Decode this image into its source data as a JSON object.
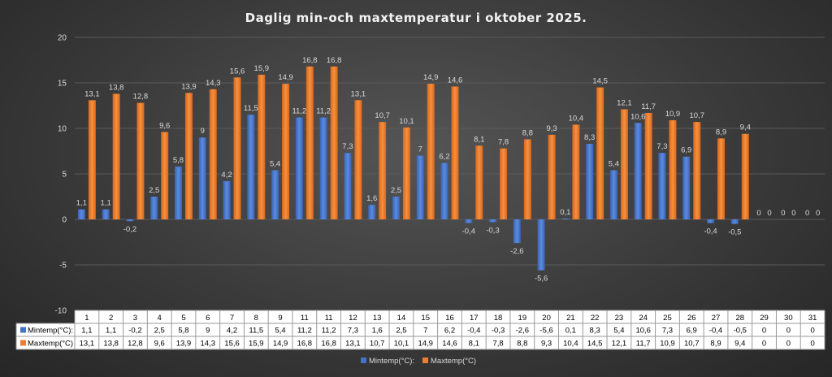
{
  "chart_data": {
    "type": "bar",
    "title": "Daglig min-och maxtemperatur i oktober 2025.",
    "ylim": [
      -10,
      20
    ],
    "yticks": [
      -10,
      -5,
      0,
      5,
      10,
      15,
      20
    ],
    "grid": true,
    "legend_position": "bottom",
    "categories": [
      "1",
      "2",
      "3",
      "4",
      "5",
      "6",
      "7",
      "8",
      "9",
      "11",
      "11",
      "12",
      "13",
      "14",
      "15",
      "16",
      "17",
      "18",
      "19",
      "20",
      "21",
      "22",
      "23",
      "24",
      "25",
      "26",
      "27",
      "28",
      "29",
      "30",
      "31"
    ],
    "series": [
      {
        "name": "Mintemp(°C):",
        "color": "#4472C4",
        "values": [
          1.1,
          1.1,
          -0.2,
          2.5,
          5.8,
          9,
          4.2,
          11.5,
          5.4,
          11.2,
          11.2,
          7.3,
          1.6,
          2.5,
          7,
          6.2,
          -0.4,
          -0.3,
          -2.6,
          -5.6,
          0.1,
          8.3,
          5.4,
          10.6,
          7.3,
          6.9,
          -0.4,
          -0.5,
          0,
          0,
          0
        ],
        "labels": [
          "1,1",
          "1,1",
          "-0,2",
          "2,5",
          "5,8",
          "9",
          "4,2",
          "11,5",
          "5,4",
          "11,2",
          "11,2",
          "7,3",
          "1,6",
          "2,5",
          "7",
          "6,2",
          "-0,4",
          "-0,3",
          "-2,6",
          "-5,6",
          "0,1",
          "8,3",
          "5,4",
          "10,6",
          "7,3",
          "6,9",
          "-0,4",
          "-0,5",
          "0",
          "0",
          "0"
        ]
      },
      {
        "name": "Maxtemp(°C)",
        "color": "#ED7D31",
        "values": [
          13.1,
          13.8,
          12.8,
          9.6,
          13.9,
          14.3,
          15.6,
          15.9,
          14.9,
          16.8,
          16.8,
          13.1,
          10.7,
          10.1,
          14.9,
          14.6,
          8.1,
          7.8,
          8.8,
          9.3,
          10.4,
          14.5,
          12.1,
          11.7,
          10.9,
          10.7,
          8.9,
          9.4,
          0,
          0,
          0
        ],
        "labels": [
          "13,1",
          "13,8",
          "12,8",
          "9,6",
          "13,9",
          "14,3",
          "15,6",
          "15,9",
          "14,9",
          "16,8",
          "16,8",
          "13,1",
          "10,7",
          "10,1",
          "14,9",
          "14,6",
          "8,1",
          "7,8",
          "8,8",
          "9,3",
          "10,4",
          "14,5",
          "12,1",
          "11,7",
          "10,9",
          "10,7",
          "8,9",
          "9,4",
          "0",
          "0",
          "0"
        ]
      }
    ],
    "table_row_labels": [
      "Mintemp(°C):",
      "Maxtemp(°C)"
    ]
  }
}
